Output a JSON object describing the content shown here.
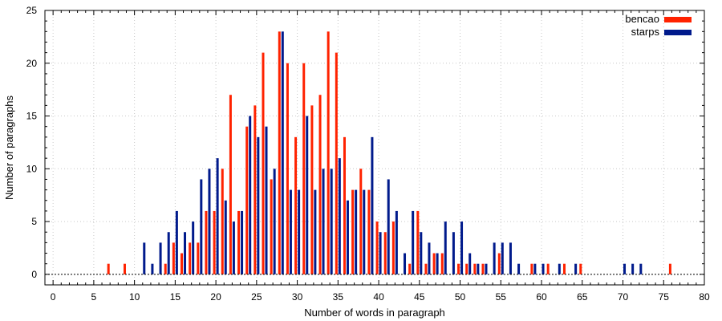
{
  "chart_data": {
    "type": "bar",
    "title": "",
    "xlabel": "Number of words in paragraph",
    "ylabel": "Number of paragraphs",
    "xlim": [
      -1,
      80
    ],
    "ylim": [
      -1,
      25
    ],
    "x_ticks": [
      0,
      5,
      10,
      15,
      20,
      25,
      30,
      35,
      40,
      45,
      50,
      55,
      60,
      65,
      70,
      75,
      80
    ],
    "y_ticks": [
      0,
      5,
      10,
      15,
      20,
      25
    ],
    "grid": true,
    "legend_position": "top-right",
    "series": [
      {
        "name": "bencao",
        "color": "#ff2200",
        "points": [
          [
            7,
            1
          ],
          [
            9,
            1
          ],
          [
            14,
            1
          ],
          [
            15,
            3
          ],
          [
            16,
            2
          ],
          [
            17,
            3
          ],
          [
            18,
            3
          ],
          [
            19,
            6
          ],
          [
            20,
            6
          ],
          [
            21,
            10
          ],
          [
            22,
            17
          ],
          [
            23,
            6
          ],
          [
            24,
            14
          ],
          [
            25,
            16
          ],
          [
            26,
            21
          ],
          [
            27,
            9
          ],
          [
            28,
            23
          ],
          [
            29,
            20
          ],
          [
            30,
            13
          ],
          [
            31,
            20
          ],
          [
            32,
            16
          ],
          [
            33,
            17
          ],
          [
            34,
            23
          ],
          [
            35,
            21
          ],
          [
            36,
            13
          ],
          [
            37,
            8
          ],
          [
            38,
            10
          ],
          [
            39,
            8
          ],
          [
            40,
            5
          ],
          [
            41,
            4
          ],
          [
            42,
            5
          ],
          [
            44,
            1
          ],
          [
            45,
            6
          ],
          [
            46,
            1
          ],
          [
            47,
            2
          ],
          [
            48,
            2
          ],
          [
            50,
            1
          ],
          [
            51,
            1
          ],
          [
            52,
            1
          ],
          [
            53,
            1
          ],
          [
            55,
            2
          ],
          [
            59,
            1
          ],
          [
            61,
            1
          ],
          [
            63,
            1
          ],
          [
            65,
            1
          ],
          [
            76,
            1
          ]
        ]
      },
      {
        "name": "starps",
        "color": "#001a8c",
        "points": [
          [
            11,
            3
          ],
          [
            12,
            1
          ],
          [
            13,
            3
          ],
          [
            14,
            4
          ],
          [
            15,
            6
          ],
          [
            16,
            4
          ],
          [
            17,
            5
          ],
          [
            18,
            9
          ],
          [
            19,
            10
          ],
          [
            20,
            11
          ],
          [
            21,
            7
          ],
          [
            22,
            5
          ],
          [
            23,
            6
          ],
          [
            24,
            15
          ],
          [
            25,
            13
          ],
          [
            26,
            14
          ],
          [
            27,
            10
          ],
          [
            28,
            23
          ],
          [
            29,
            8
          ],
          [
            30,
            8
          ],
          [
            31,
            15
          ],
          [
            32,
            8
          ],
          [
            33,
            10
          ],
          [
            34,
            10
          ],
          [
            35,
            11
          ],
          [
            36,
            7
          ],
          [
            37,
            8
          ],
          [
            38,
            8
          ],
          [
            39,
            13
          ],
          [
            40,
            4
          ],
          [
            41,
            9
          ],
          [
            42,
            6
          ],
          [
            43,
            2
          ],
          [
            44,
            6
          ],
          [
            45,
            4
          ],
          [
            46,
            3
          ],
          [
            47,
            2
          ],
          [
            48,
            5
          ],
          [
            49,
            4
          ],
          [
            50,
            5
          ],
          [
            51,
            2
          ],
          [
            52,
            1
          ],
          [
            53,
            1
          ],
          [
            54,
            3
          ],
          [
            55,
            3
          ],
          [
            56,
            3
          ],
          [
            57,
            1
          ],
          [
            59,
            1
          ],
          [
            60,
            1
          ],
          [
            62,
            1
          ],
          [
            64,
            1
          ],
          [
            70,
            1
          ],
          [
            71,
            1
          ],
          [
            72,
            1
          ]
        ]
      }
    ]
  }
}
